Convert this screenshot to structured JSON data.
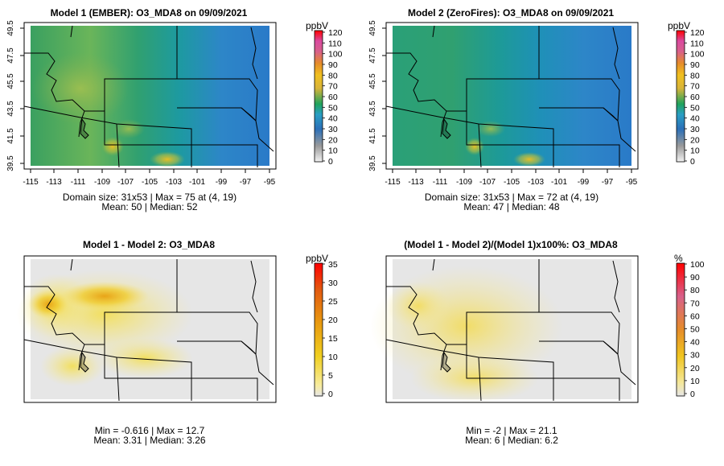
{
  "panels": [
    {
      "title": "Model 1 (EMBER): O3_MDA8 on 09/09/2021",
      "unit": "ppbV",
      "cb_ticks": [
        "120",
        "110",
        "100",
        "90",
        "80",
        "70",
        "60",
        "50",
        "40",
        "30",
        "20",
        "10",
        "0"
      ],
      "x_ticks": [
        "-115",
        "-113",
        "-111",
        "-109",
        "-107",
        "-105",
        "-103",
        "-101",
        "-99",
        "-97",
        "-95"
      ],
      "y_ticks": [
        "49.5",
        "47.5",
        "45.5",
        "43.5",
        "41.5",
        "39.5"
      ],
      "stat_line1": "Domain size: 31x53 | Max = 75 at (4, 19)",
      "stat_line2": "Mean: 50 |  Median: 52"
    },
    {
      "title": "Model 2 (ZeroFires): O3_MDA8 on 09/09/2021",
      "unit": "ppbV",
      "cb_ticks": [
        "120",
        "110",
        "100",
        "90",
        "80",
        "70",
        "60",
        "50",
        "40",
        "30",
        "20",
        "10",
        "0"
      ],
      "x_ticks": [
        "-115",
        "-113",
        "-111",
        "-109",
        "-107",
        "-105",
        "-103",
        "-101",
        "-99",
        "-97",
        "-95"
      ],
      "y_ticks": [
        "49.5",
        "47.5",
        "45.5",
        "43.5",
        "41.5",
        "39.5"
      ],
      "stat_line1": "Domain size: 31x53 | Max = 72 at (4, 19)",
      "stat_line2": "Mean: 47 |  Median: 48"
    },
    {
      "title": "Model 1 - Model 2: O3_MDA8",
      "unit": "ppbV",
      "cb_ticks": [
        "35",
        "30",
        "25",
        "20",
        "15",
        "10",
        "5",
        "0"
      ],
      "stat_line1": "Min = -0.616 | Max = 12.7",
      "stat_line2": "Mean: 3.31 |  Median: 3.26"
    },
    {
      "title": "(Model 1 - Model 2)/(Model 1)x100%: O3_MDA8",
      "unit": "%",
      "cb_ticks": [
        "100",
        "90",
        "80",
        "70",
        "60",
        "50",
        "40",
        "30",
        "20",
        "10",
        "0"
      ],
      "stat_line1": "Min = -2 | Max = 21.1",
      "stat_line2": "Mean: 6 |  Median: 6.2"
    }
  ],
  "colors": {
    "scale_high": "#ff0000",
    "scale_mid": "#e0b000",
    "scale_green": "#20a050",
    "scale_blue": "#1f77c8",
    "scale_low": "#e6e6e6"
  }
}
